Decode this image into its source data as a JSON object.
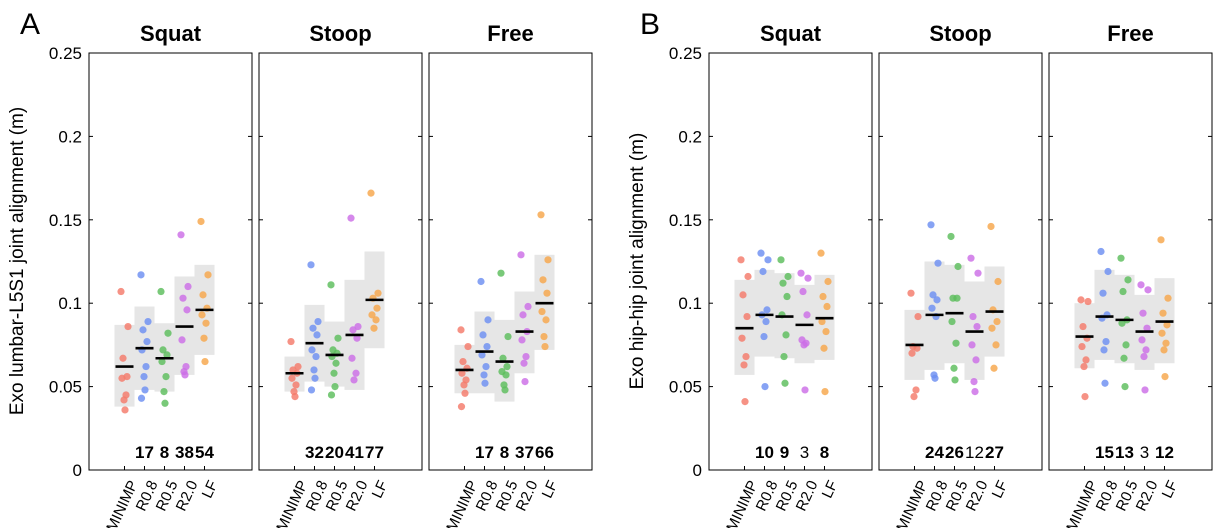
{
  "chart_data": [
    {
      "type": "scatter",
      "panel_label": "A",
      "ylabel": "Exo lumbar-L5S1 joint alignment (m)",
      "ylim": [
        0,
        0.25
      ],
      "yticks": [
        0,
        0.05,
        0.1,
        0.15,
        0.2,
        0.25
      ],
      "ytick_labels": [
        "0",
        "0.05",
        "0.1",
        "0.15",
        "0.2",
        "0.25"
      ],
      "categories": [
        "MINIMP",
        "R0.8",
        "R0.5",
        "R2.0",
        "LF"
      ],
      "colors": [
        "#f47a6a",
        "#6d8ff2",
        "#5cbd5c",
        "#cc6ee6",
        "#f6a64a"
      ],
      "subplots": [
        {
          "title": "Squat",
          "annotations": [
            {
              "text": "",
              "bold": false
            },
            {
              "text": "17",
              "bold": true
            },
            {
              "text": "8",
              "bold": true
            },
            {
              "text": "38",
              "bold": true
            },
            {
              "text": "54",
              "bold": true
            }
          ],
          "groups": [
            {
              "mean": 0.062,
              "box": [
                0.038,
                0.087
              ],
              "points": [
                0.107,
                0.086,
                0.067,
                0.056,
                0.055,
                0.045,
                0.042,
                0.036
              ]
            },
            {
              "mean": 0.073,
              "box": [
                0.048,
                0.098
              ],
              "points": [
                0.117,
                0.089,
                0.084,
                0.077,
                0.072,
                0.062,
                0.056,
                0.048,
                0.043
              ]
            },
            {
              "mean": 0.067,
              "box": [
                0.047,
                0.088
              ],
              "points": [
                0.107,
                0.082,
                0.072,
                0.069,
                0.065,
                0.056,
                0.047,
                0.04
              ]
            },
            {
              "mean": 0.086,
              "box": [
                0.057,
                0.116
              ],
              "points": [
                0.141,
                0.11,
                0.103,
                0.096,
                0.078,
                0.062,
                0.059,
                0.057
              ]
            },
            {
              "mean": 0.096,
              "box": [
                0.069,
                0.123
              ],
              "points": [
                0.149,
                0.117,
                0.105,
                0.097,
                0.093,
                0.088,
                0.079,
                0.065
              ]
            }
          ]
        },
        {
          "title": "Stoop",
          "annotations": [
            {
              "text": "",
              "bold": false
            },
            {
              "text": "32",
              "bold": true
            },
            {
              "text": "20",
              "bold": true
            },
            {
              "text": "41",
              "bold": true
            },
            {
              "text": "77",
              "bold": true
            }
          ],
          "groups": [
            {
              "mean": 0.058,
              "box": [
                0.047,
                0.068
              ],
              "points": [
                0.077,
                0.062,
                0.06,
                0.058,
                0.055,
                0.051,
                0.047,
                0.044
              ]
            },
            {
              "mean": 0.076,
              "box": [
                0.053,
                0.099
              ],
              "points": [
                0.123,
                0.089,
                0.085,
                0.081,
                0.072,
                0.068,
                0.06,
                0.055,
                0.048
              ]
            },
            {
              "mean": 0.069,
              "box": [
                0.05,
                0.089
              ],
              "points": [
                0.111,
                0.079,
                0.072,
                0.07,
                0.068,
                0.064,
                0.058,
                0.05,
                0.045
              ]
            },
            {
              "mean": 0.081,
              "box": [
                0.048,
                0.114
              ],
              "points": [
                0.151,
                0.086,
                0.084,
                0.079,
                0.067,
                0.058,
                0.054
              ]
            },
            {
              "mean": 0.102,
              "box": [
                0.073,
                0.131
              ],
              "points": [
                0.166,
                0.106,
                0.103,
                0.097,
                0.093,
                0.09,
                0.085
              ]
            }
          ]
        },
        {
          "title": "Free",
          "annotations": [
            {
              "text": "",
              "bold": false
            },
            {
              "text": "17",
              "bold": true
            },
            {
              "text": "8",
              "bold": true
            },
            {
              "text": "37",
              "bold": true
            },
            {
              "text": "66",
              "bold": true
            }
          ],
          "groups": [
            {
              "mean": 0.06,
              "box": [
                0.046,
                0.075
              ],
              "points": [
                0.084,
                0.074,
                0.065,
                0.061,
                0.058,
                0.054,
                0.051,
                0.046,
                0.038
              ]
            },
            {
              "mean": 0.071,
              "box": [
                0.046,
                0.095
              ],
              "points": [
                0.113,
                0.09,
                0.081,
                0.074,
                0.069,
                0.062,
                0.057,
                0.052
              ]
            },
            {
              "mean": 0.065,
              "box": [
                0.041,
                0.09
              ],
              "points": [
                0.118,
                0.08,
                0.067,
                0.062,
                0.059,
                0.057,
                0.051,
                0.048
              ]
            },
            {
              "mean": 0.083,
              "box": [
                0.058,
                0.107
              ],
              "points": [
                0.129,
                0.098,
                0.093,
                0.083,
                0.078,
                0.068,
                0.064,
                0.053
              ]
            },
            {
              "mean": 0.1,
              "box": [
                0.072,
                0.129
              ],
              "points": [
                0.153,
                0.126,
                0.114,
                0.106,
                0.095,
                0.09,
                0.08,
                0.074
              ]
            }
          ]
        }
      ]
    },
    {
      "type": "scatter",
      "panel_label": "B",
      "ylabel": "Exo hip-hip joint alignment (m)",
      "ylim": [
        0,
        0.25
      ],
      "yticks": [
        0,
        0.05,
        0.1,
        0.15,
        0.2,
        0.25
      ],
      "ytick_labels": [
        "0",
        "0.05",
        "0.1",
        "0.15",
        "0.2",
        "0.25"
      ],
      "categories": [
        "MINIMP",
        "R0.8",
        "R0.5",
        "R2.0",
        "LF"
      ],
      "colors": [
        "#f47a6a",
        "#6d8ff2",
        "#5cbd5c",
        "#cc6ee6",
        "#f6a64a"
      ],
      "subplots": [
        {
          "title": "Squat",
          "annotations": [
            {
              "text": "",
              "bold": false
            },
            {
              "text": "10",
              "bold": true
            },
            {
              "text": "9",
              "bold": true
            },
            {
              "text": "3",
              "bold": false
            },
            {
              "text": "8",
              "bold": true
            }
          ],
          "groups": [
            {
              "mean": 0.085,
              "box": [
                0.057,
                0.114
              ],
              "points": [
                0.126,
                0.116,
                0.105,
                0.092,
                0.079,
                0.068,
                0.063,
                0.041
              ]
            },
            {
              "mean": 0.093,
              "box": [
                0.068,
                0.12
              ],
              "points": [
                0.13,
                0.126,
                0.119,
                0.096,
                0.093,
                0.089,
                0.08,
                0.05
              ]
            },
            {
              "mean": 0.092,
              "box": [
                0.067,
                0.118
              ],
              "points": [
                0.126,
                0.116,
                0.112,
                0.104,
                0.093,
                0.081,
                0.068,
                0.052
              ]
            },
            {
              "mean": 0.087,
              "box": [
                0.064,
                0.111
              ],
              "points": [
                0.118,
                0.115,
                0.107,
                0.093,
                0.078,
                0.076,
                0.075,
                0.048
              ]
            },
            {
              "mean": 0.091,
              "box": [
                0.066,
                0.117
              ],
              "points": [
                0.13,
                0.113,
                0.104,
                0.098,
                0.089,
                0.083,
                0.073,
                0.047
              ]
            }
          ]
        },
        {
          "title": "Stoop",
          "annotations": [
            {
              "text": "",
              "bold": false
            },
            {
              "text": "24",
              "bold": true
            },
            {
              "text": "26",
              "bold": true
            },
            {
              "text": "12",
              "bold": false
            },
            {
              "text": "27",
              "bold": true
            }
          ],
          "groups": [
            {
              "mean": 0.075,
              "box": [
                0.054,
                0.096
              ],
              "points": [
                0.106,
                0.092,
                0.074,
                0.073,
                0.07,
                0.048,
                0.044
              ]
            },
            {
              "mean": 0.093,
              "box": [
                0.06,
                0.125
              ],
              "points": [
                0.147,
                0.124,
                0.105,
                0.102,
                0.097,
                0.092,
                0.057,
                0.055
              ]
            },
            {
              "mean": 0.094,
              "box": [
                0.064,
                0.123
              ],
              "points": [
                0.14,
                0.122,
                0.103,
                0.103,
                0.089,
                0.076,
                0.061,
                0.054
              ]
            },
            {
              "mean": 0.083,
              "box": [
                0.054,
                0.113
              ],
              "points": [
                0.127,
                0.118,
                0.092,
                0.086,
                0.075,
                0.066,
                0.053,
                0.047
              ]
            },
            {
              "mean": 0.095,
              "box": [
                0.068,
                0.122
              ],
              "points": [
                0.146,
                0.113,
                0.096,
                0.089,
                0.085,
                0.075,
                0.061
              ]
            }
          ]
        },
        {
          "title": "Free",
          "annotations": [
            {
              "text": "",
              "bold": false
            },
            {
              "text": "15",
              "bold": true
            },
            {
              "text": "13",
              "bold": true
            },
            {
              "text": "3",
              "bold": false
            },
            {
              "text": "12",
              "bold": true
            }
          ],
          "groups": [
            {
              "mean": 0.08,
              "box": [
                0.061,
                0.1
              ],
              "points": [
                0.102,
                0.101,
                0.086,
                0.079,
                0.074,
                0.066,
                0.062,
                0.044
              ]
            },
            {
              "mean": 0.092,
              "box": [
                0.066,
                0.12
              ],
              "points": [
                0.131,
                0.119,
                0.106,
                0.093,
                0.091,
                0.077,
                0.072,
                0.052
              ]
            },
            {
              "mean": 0.09,
              "box": [
                0.064,
                0.117
              ],
              "points": [
                0.127,
                0.114,
                0.107,
                0.09,
                0.088,
                0.075,
                0.067,
                0.05
              ]
            },
            {
              "mean": 0.083,
              "box": [
                0.06,
                0.105
              ],
              "points": [
                0.111,
                0.108,
                0.094,
                0.085,
                0.078,
                0.072,
                0.068,
                0.048
              ]
            },
            {
              "mean": 0.089,
              "box": [
                0.064,
                0.115
              ],
              "points": [
                0.138,
                0.103,
                0.094,
                0.087,
                0.082,
                0.076,
                0.072,
                0.056
              ]
            }
          ]
        }
      ]
    }
  ]
}
